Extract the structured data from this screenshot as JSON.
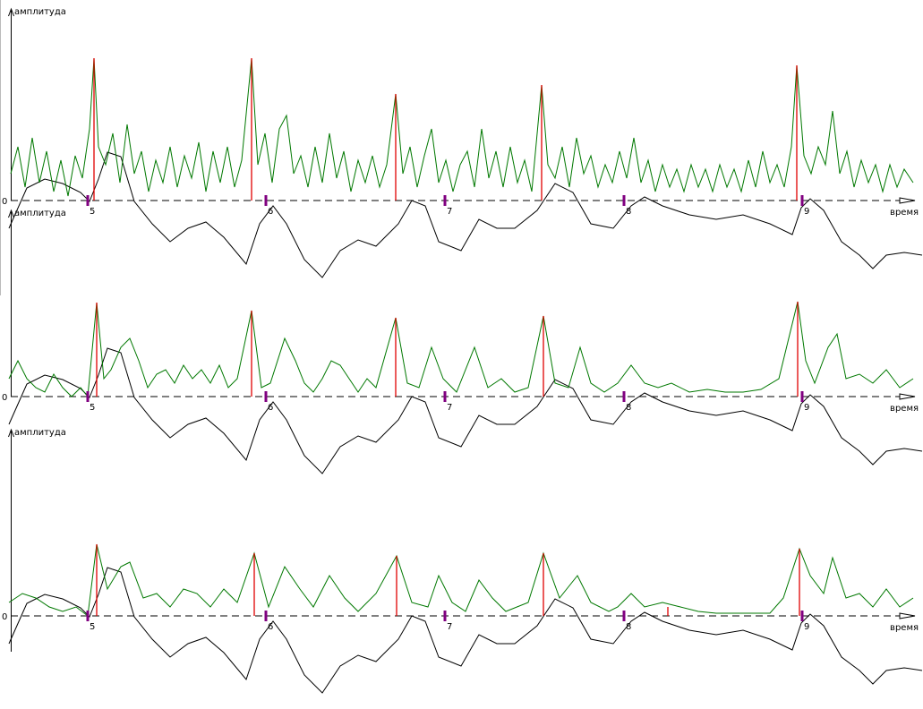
{
  "chart_data": [
    {
      "type": "line",
      "y_label": "амплитуда",
      "x_label": "время",
      "xlim": [
        0,
        1031
      ],
      "ylim": [
        -90,
        214
      ],
      "yticks": [
        0
      ],
      "series": [
        {
          "color": "#000000",
          "x": [
            10,
            30,
            50,
            70,
            90,
            100,
            110,
            120,
            135,
            150,
            170,
            190,
            210,
            230,
            250,
            275,
            290,
            305,
            320,
            340,
            360,
            380,
            400,
            420,
            445,
            460,
            475,
            490,
            515,
            535,
            555,
            575,
            600,
            620,
            640,
            660,
            685,
            705,
            720,
            740,
            770,
            800,
            830,
            860,
            885,
            895,
            905,
            920,
            940,
            960,
            975,
            990,
            1010,
            1030
          ],
          "values": [
            -31,
            14,
            24,
            19,
            9,
            -1,
            24,
            54,
            49,
            -1,
            -26,
            -46,
            -31,
            -24,
            -41,
            -71,
            -26,
            -6,
            -26,
            -66,
            -86,
            -56,
            -44,
            -51,
            -26,
            0,
            -6,
            -46,
            -56,
            -21,
            -31,
            -31,
            -11,
            19,
            9,
            -26,
            -31,
            -6,
            4,
            -6,
            -16,
            -21,
            -16,
            -26,
            -38,
            -8,
            2,
            -11,
            -46,
            -61,
            -76,
            -61,
            -58,
            -61
          ]
        },
        {
          "color": "#007800",
          "x": [
            12,
            20,
            28,
            36,
            44,
            52,
            60,
            68,
            76,
            84,
            92,
            100,
            105,
            110,
            118,
            126,
            134,
            142,
            150,
            158,
            166,
            174,
            182,
            190,
            198,
            206,
            214,
            222,
            230,
            238,
            246,
            254,
            262,
            270,
            281,
            288,
            296,
            304,
            312,
            320,
            328,
            336,
            344,
            352,
            360,
            368,
            376,
            384,
            392,
            400,
            408,
            416,
            424,
            432,
            442,
            450,
            458,
            466,
            474,
            482,
            490,
            498,
            506,
            514,
            522,
            530,
            538,
            546,
            554,
            562,
            570,
            578,
            586,
            594,
            605,
            612,
            620,
            628,
            636,
            644,
            652,
            660,
            668,
            676,
            684,
            692,
            700,
            708,
            716,
            724,
            732,
            740,
            748,
            756,
            764,
            772,
            780,
            788,
            796,
            804,
            812,
            820,
            828,
            836,
            844,
            852,
            860,
            868,
            876,
            884,
            890,
            898,
            906,
            914,
            922,
            930,
            938,
            946,
            954,
            962,
            970,
            978,
            986,
            994,
            1002,
            1010,
            1020
          ],
          "values": [
            30,
            60,
            15,
            70,
            20,
            55,
            10,
            45,
            5,
            50,
            25,
            80,
            159,
            60,
            40,
            75,
            20,
            85,
            30,
            55,
            10,
            45,
            20,
            60,
            15,
            50,
            25,
            65,
            10,
            55,
            20,
            60,
            15,
            45,
            159,
            40,
            75,
            20,
            80,
            95,
            30,
            50,
            15,
            60,
            20,
            75,
            25,
            55,
            10,
            45,
            20,
            50,
            15,
            40,
            119,
            30,
            60,
            15,
            50,
            80,
            20,
            45,
            10,
            40,
            55,
            15,
            80,
            25,
            55,
            15,
            60,
            20,
            45,
            10,
            129,
            40,
            25,
            60,
            15,
            70,
            30,
            50,
            15,
            40,
            20,
            55,
            25,
            70,
            20,
            45,
            10,
            40,
            15,
            35,
            10,
            40,
            15,
            35,
            10,
            40,
            15,
            35,
            10,
            45,
            15,
            55,
            20,
            40,
            15,
            60,
            151,
            50,
            30,
            60,
            40,
            100,
            30,
            55,
            15,
            45,
            20,
            40,
            10,
            40,
            15,
            35,
            20
          ]
        },
        {
          "color": "#e00000",
          "x": [
            105,
            281,
            442,
            605,
            890
          ],
          "values": [
            159,
            159,
            119,
            129,
            151
          ]
        }
      ],
      "markers": {
        "color": "#800080",
        "x": [
          98,
          297,
          497,
          697,
          896
        ],
        "labels": [
          "5",
          "6",
          "7",
          "8",
          "9"
        ]
      }
    },
    {
      "type": "line",
      "y_label": "амплитуда",
      "x_label": "время",
      "xlim": [
        0,
        1031
      ],
      "ylim": [
        -90,
        208
      ],
      "yticks": [
        0
      ],
      "series": [
        {
          "color": "#000000",
          "x": [
            10,
            30,
            50,
            70,
            90,
            100,
            110,
            120,
            135,
            150,
            170,
            190,
            210,
            230,
            250,
            275,
            290,
            305,
            320,
            340,
            360,
            380,
            400,
            420,
            445,
            460,
            475,
            490,
            515,
            535,
            555,
            575,
            600,
            620,
            640,
            660,
            685,
            705,
            720,
            740,
            770,
            800,
            830,
            860,
            885,
            895,
            905,
            920,
            940,
            960,
            975,
            990,
            1010,
            1030
          ],
          "values": [
            -31,
            14,
            24,
            19,
            9,
            -1,
            24,
            54,
            49,
            -1,
            -26,
            -46,
            -31,
            -24,
            -41,
            -71,
            -26,
            -6,
            -26,
            -66,
            -86,
            -56,
            -44,
            -51,
            -26,
            0,
            -6,
            -46,
            -56,
            -21,
            -31,
            -31,
            -11,
            19,
            9,
            -26,
            -31,
            -6,
            4,
            -6,
            -16,
            -21,
            -16,
            -26,
            -38,
            -8,
            2,
            -11,
            -46,
            -61,
            -76,
            -61,
            -58,
            -61
          ]
        },
        {
          "color": "#007800",
          "x": [
            10,
            20,
            30,
            40,
            50,
            60,
            70,
            80,
            90,
            98,
            108,
            116,
            124,
            135,
            145,
            155,
            165,
            175,
            185,
            195,
            205,
            215,
            225,
            235,
            245,
            255,
            265,
            281,
            292,
            302,
            318,
            330,
            340,
            350,
            360,
            370,
            380,
            390,
            400,
            410,
            420,
            442,
            455,
            468,
            482,
            495,
            510,
            530,
            545,
            560,
            575,
            590,
            607,
            620,
            635,
            648,
            660,
            675,
            690,
            705,
            720,
            735,
            750,
            770,
            790,
            810,
            830,
            850,
            870,
            891,
            900,
            910,
            925,
            935,
            945,
            960,
            975,
            990,
            1005,
            1020
          ],
          "values": [
            20,
            40,
            20,
            10,
            5,
            25,
            10,
            0,
            10,
            0,
            105,
            20,
            30,
            55,
            65,
            40,
            10,
            25,
            30,
            15,
            35,
            20,
            30,
            15,
            35,
            10,
            20,
            96,
            10,
            15,
            65,
            40,
            15,
            5,
            20,
            40,
            35,
            20,
            5,
            20,
            10,
            88,
            15,
            10,
            55,
            20,
            5,
            55,
            10,
            20,
            5,
            10,
            90,
            15,
            10,
            55,
            15,
            5,
            15,
            35,
            15,
            10,
            15,
            5,
            8,
            5,
            5,
            8,
            20,
            106,
            40,
            15,
            55,
            70,
            20,
            25,
            15,
            30,
            10,
            20
          ]
        },
        {
          "color": "#e00000",
          "x": [
            108,
            281,
            442,
            607,
            891
          ],
          "values": [
            105,
            96,
            88,
            90,
            106
          ]
        }
      ],
      "markers": {
        "color": "#800080",
        "x": [
          98,
          297,
          497,
          697,
          896
        ],
        "labels": [
          "5",
          "6",
          "7",
          "8",
          "9"
        ]
      }
    },
    {
      "type": "line",
      "y_label": "амплитуда",
      "x_label": "время",
      "xlim": [
        0,
        1031
      ],
      "ylim": [
        -100,
        208
      ],
      "yticks": [
        0
      ],
      "series": [
        {
          "color": "#000000",
          "x": [
            10,
            30,
            50,
            70,
            90,
            100,
            110,
            120,
            135,
            150,
            170,
            190,
            210,
            230,
            250,
            275,
            290,
            305,
            320,
            340,
            360,
            380,
            400,
            420,
            445,
            460,
            475,
            490,
            515,
            535,
            555,
            575,
            600,
            620,
            640,
            660,
            685,
            705,
            720,
            740,
            770,
            800,
            830,
            860,
            885,
            895,
            905,
            920,
            940,
            960,
            975,
            990,
            1010,
            1030
          ],
          "values": [
            -31,
            14,
            24,
            19,
            9,
            -1,
            24,
            54,
            49,
            -1,
            -26,
            -46,
            -31,
            -24,
            -41,
            -71,
            -26,
            -6,
            -26,
            -66,
            -86,
            -56,
            -44,
            -51,
            -26,
            0,
            -6,
            -46,
            -56,
            -21,
            -31,
            -31,
            -11,
            19,
            9,
            -26,
            -31,
            -6,
            4,
            -6,
            -16,
            -21,
            -16,
            -26,
            -38,
            -8,
            2,
            -11,
            -46,
            -61,
            -76,
            -61,
            -58,
            -61
          ]
        },
        {
          "color": "#007800",
          "x": [
            10,
            25,
            40,
            55,
            70,
            85,
            98,
            108,
            120,
            135,
            145,
            160,
            175,
            190,
            205,
            220,
            235,
            250,
            265,
            284,
            300,
            318,
            335,
            350,
            368,
            385,
            400,
            420,
            443,
            460,
            478,
            490,
            505,
            520,
            535,
            550,
            565,
            590,
            607,
            625,
            645,
            660,
            680,
            690,
            705,
            720,
            740,
            760,
            780,
            800,
            820,
            840,
            860,
            875,
            893,
            905,
            920,
            930,
            945,
            960,
            975,
            990,
            1005,
            1020
          ],
          "values": [
            15,
            25,
            20,
            10,
            5,
            10,
            0,
            80,
            30,
            55,
            60,
            20,
            25,
            10,
            30,
            25,
            10,
            30,
            15,
            70,
            10,
            55,
            30,
            10,
            45,
            20,
            5,
            25,
            67,
            15,
            10,
            45,
            15,
            5,
            40,
            20,
            5,
            15,
            70,
            20,
            45,
            15,
            5,
            10,
            25,
            10,
            15,
            10,
            5,
            3,
            3,
            3,
            3,
            20,
            75,
            45,
            25,
            65,
            20,
            25,
            10,
            30,
            10,
            20
          ]
        },
        {
          "color": "#e00000",
          "x": [
            108,
            284,
            443,
            607,
            746,
            893
          ],
          "values": [
            80,
            70,
            67,
            70,
            10,
            75
          ]
        }
      ],
      "markers": {
        "color": "#800080",
        "x": [
          98,
          297,
          497,
          697,
          896
        ],
        "labels": [
          "5",
          "6",
          "7",
          "8",
          "9"
        ]
      }
    }
  ]
}
